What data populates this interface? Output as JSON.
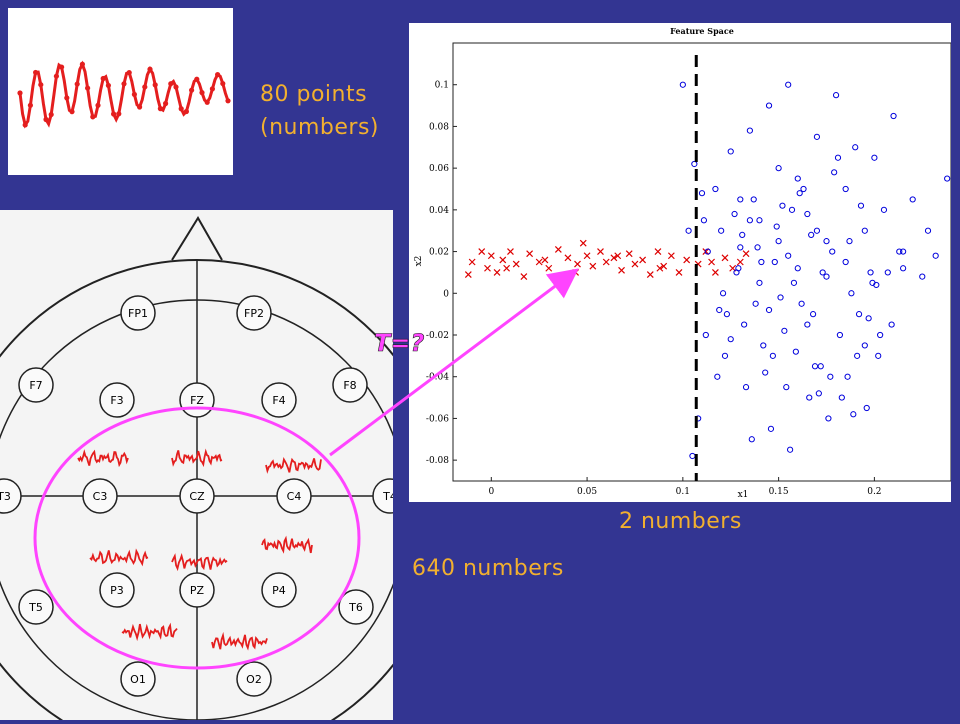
{
  "captions": {
    "points_line1": "80 points",
    "points_line2": "(numbers)",
    "two_numbers": "2 numbers",
    "six_forty_numbers": "640 numbers"
  },
  "transform_label": "T=?",
  "colors": {
    "background": "#333592",
    "caption": "#f2b02f",
    "signal": "#e41e1e",
    "highlight": "#ff44ff",
    "class_a": "#dd0000",
    "class_b": "#0000dd"
  },
  "eeg": {
    "electrodes": [
      "FP1",
      "FP2",
      "F7",
      "F3",
      "FZ",
      "F4",
      "F8",
      "T3",
      "C3",
      "CZ",
      "C4",
      "T4",
      "T5",
      "P3",
      "PZ",
      "P4",
      "T6",
      "O1",
      "O2"
    ]
  },
  "chart_data": {
    "type": "scatter",
    "title": "Feature Space",
    "xlabel": "x1",
    "ylabel": "x2",
    "xlim": [
      -0.02,
      0.24
    ],
    "ylim": [
      -0.09,
      0.12
    ],
    "xticks": [
      "0",
      "0.05",
      "0.1",
      "0.15",
      "0.2"
    ],
    "yticks": [
      "0.1",
      "0.08",
      "0.06",
      "0.04",
      "0.02",
      "0",
      "-0.02",
      "-0.04",
      "-0.06",
      "-0.08"
    ],
    "decision_boundary_x": 0.107,
    "series": [
      {
        "marker": "x",
        "color": "#dd0000",
        "x": [
          -0.01,
          -0.005,
          -0.002,
          0.0,
          0.003,
          0.006,
          0.01,
          0.013,
          0.017,
          0.02,
          0.025,
          0.03,
          0.035,
          0.04,
          0.044,
          0.048,
          0.05,
          0.053,
          0.057,
          0.06,
          0.064,
          0.068,
          0.072,
          0.075,
          0.079,
          0.083,
          0.087,
          0.09,
          0.094,
          0.098,
          0.102,
          0.108,
          0.112,
          0.117,
          0.122,
          0.126,
          0.13,
          0.133,
          -0.012,
          0.008,
          0.028,
          0.045,
          0.066,
          0.088,
          0.115
        ],
        "y": [
          0.015,
          0.02,
          0.012,
          0.018,
          0.01,
          0.016,
          0.02,
          0.014,
          0.008,
          0.019,
          0.015,
          0.012,
          0.021,
          0.017,
          0.01,
          0.024,
          0.018,
          0.013,
          0.02,
          0.015,
          0.017,
          0.011,
          0.019,
          0.014,
          0.016,
          0.009,
          0.02,
          0.013,
          0.018,
          0.01,
          0.016,
          0.014,
          0.02,
          0.01,
          0.017,
          0.012,
          0.015,
          0.019,
          0.009,
          0.012,
          0.016,
          0.014,
          0.018,
          0.012,
          0.015
        ]
      },
      {
        "marker": "o",
        "color": "#0000dd",
        "x": [
          0.1,
          0.106,
          0.11,
          0.12,
          0.125,
          0.13,
          0.135,
          0.14,
          0.145,
          0.15,
          0.152,
          0.155,
          0.16,
          0.165,
          0.17,
          0.175,
          0.18,
          0.185,
          0.19,
          0.195,
          0.2,
          0.205,
          0.21,
          0.215,
          0.22,
          0.228,
          0.232,
          0.238,
          0.128,
          0.138,
          0.148,
          0.158,
          0.168,
          0.178,
          0.188,
          0.198,
          0.112,
          0.122,
          0.132,
          0.142,
          0.162,
          0.172,
          0.182,
          0.192,
          0.202,
          0.118,
          0.154,
          0.166,
          0.176,
          0.186,
          0.196,
          0.108,
          0.136,
          0.146,
          0.156,
          0.15,
          0.16,
          0.14,
          0.17,
          0.13,
          0.145,
          0.155,
          0.165,
          0.175,
          0.135,
          0.125,
          0.185,
          0.195,
          0.157,
          0.147,
          0.167,
          0.137,
          0.177,
          0.127,
          0.187,
          0.117,
          0.197,
          0.207,
          0.153,
          0.163,
          0.143,
          0.173,
          0.133,
          0.183,
          0.123,
          0.193,
          0.113,
          0.203,
          0.213,
          0.149,
          0.159,
          0.139,
          0.169,
          0.129,
          0.179,
          0.119,
          0.189,
          0.199,
          0.209,
          0.151,
          0.161,
          0.141,
          0.171,
          0.131,
          0.181,
          0.121,
          0.191,
          0.111,
          0.201,
          0.105,
          0.215,
          0.225,
          0.103
        ],
        "y": [
          0.1,
          0.062,
          0.048,
          0.03,
          0.068,
          0.045,
          0.078,
          0.035,
          0.09,
          0.06,
          0.042,
          0.1,
          0.055,
          0.038,
          0.075,
          0.025,
          0.095,
          0.05,
          0.07,
          0.03,
          0.065,
          0.04,
          0.085,
          0.02,
          0.045,
          0.03,
          0.018,
          0.055,
          0.01,
          -0.005,
          0.015,
          0.005,
          -0.01,
          0.02,
          0.0,
          0.01,
          -0.02,
          -0.03,
          -0.015,
          -0.025,
          -0.005,
          -0.035,
          -0.02,
          -0.01,
          -0.03,
          -0.04,
          -0.045,
          -0.05,
          -0.06,
          -0.04,
          -0.055,
          -0.06,
          -0.07,
          -0.065,
          -0.075,
          0.025,
          0.012,
          0.005,
          0.03,
          0.022,
          -0.008,
          0.018,
          -0.015,
          0.008,
          0.035,
          -0.022,
          0.015,
          -0.025,
          0.04,
          -0.03,
          0.028,
          0.045,
          -0.04,
          0.038,
          0.025,
          0.05,
          -0.012,
          0.01,
          -0.018,
          0.05,
          -0.038,
          0.01,
          -0.045,
          -0.05,
          -0.01,
          0.042,
          0.02,
          -0.02,
          0.02,
          0.032,
          -0.028,
          0.022,
          -0.035,
          0.012,
          0.058,
          -0.008,
          -0.058,
          0.005,
          -0.015,
          -0.002,
          0.048,
          0.015,
          -0.048,
          0.028,
          0.065,
          0.0,
          -0.03,
          0.035,
          0.004,
          -0.078,
          0.012,
          0.008,
          0.03
        ]
      }
    ]
  }
}
